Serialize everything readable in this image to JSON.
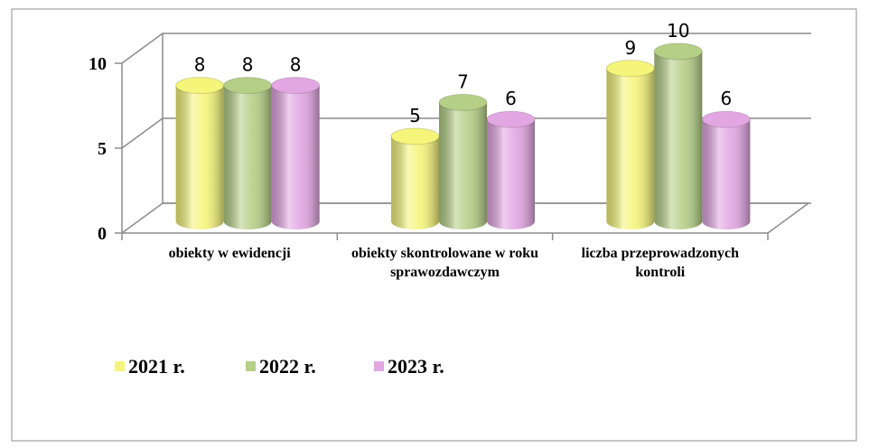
{
  "chart_data": {
    "type": "bar3d",
    "categories": [
      "obiekty w ewidencji",
      "obiekty skontrolowane w roku sprawozdawczym",
      "liczba przeprowadzonych kontroli"
    ],
    "series": [
      {
        "name": "2021 r.",
        "color": "#f5f57a",
        "values": [
          8,
          5,
          9
        ]
      },
      {
        "name": "2022 r.",
        "color": "#b5cf87",
        "values": [
          8,
          7,
          10
        ]
      },
      {
        "name": "2023 r.",
        "color": "#e2a6e2",
        "values": [
          8,
          6,
          6
        ]
      }
    ],
    "ylim": [
      0,
      10
    ],
    "yticks": [
      0,
      5,
      10
    ],
    "grid": true,
    "legend": "bottom-left"
  }
}
